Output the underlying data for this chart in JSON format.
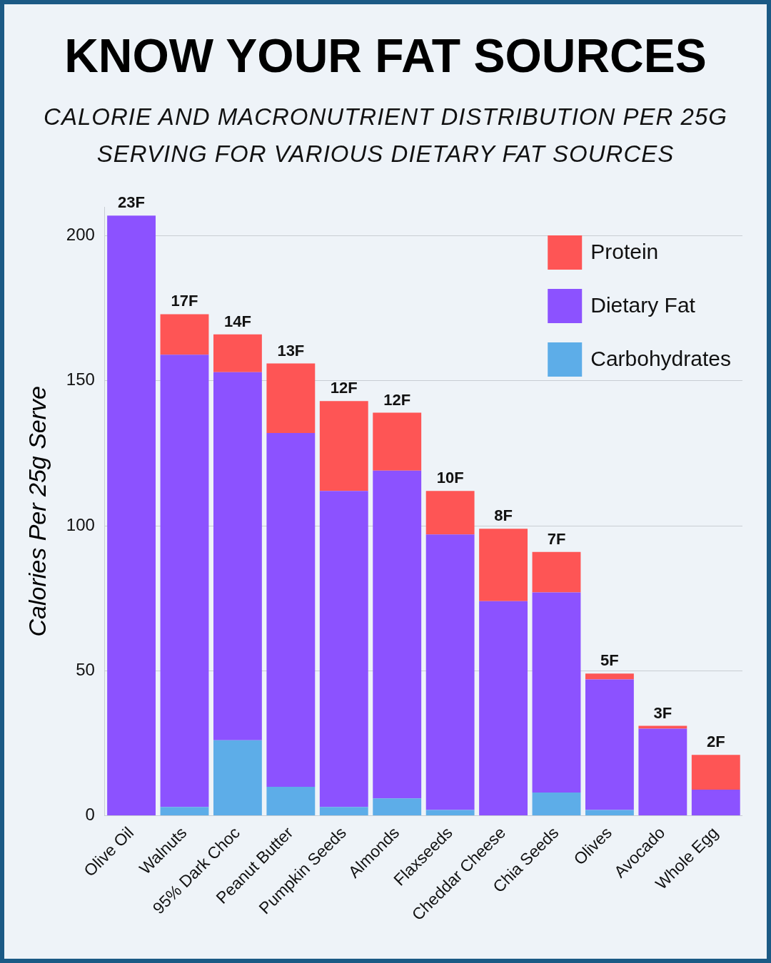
{
  "chart_data": {
    "type": "bar",
    "title": "KNOW YOUR FAT SOURCES",
    "subtitle": "CALORIE AND MACRONUTRIENT DISTRIBUTION PER 25G SERVING FOR VARIOUS DIETARY FAT SOURCES",
    "ylabel": "Calories Per 25g Serve",
    "categories": [
      "Olive Oil",
      "Walnuts",
      "95% Dark Choc",
      "Peanut Butter",
      "Pumpkin Seeds",
      "Almonds",
      "Flaxseeds",
      "Cheddar Cheese",
      "Chia Seeds",
      "Olives",
      "Avocado",
      "Whole Egg"
    ],
    "stacked": true,
    "series": [
      {
        "name": "Carbohydrates",
        "color": "#5dade8",
        "values": [
          0,
          3,
          26,
          10,
          3,
          6,
          2,
          0,
          8,
          2,
          0,
          0
        ]
      },
      {
        "name": "Dietary Fat",
        "color": "#8c52ff",
        "values": [
          207,
          156,
          127,
          122,
          109,
          113,
          95,
          74,
          69,
          45,
          30,
          9
        ]
      },
      {
        "name": "Protein",
        "color": "#fe5555",
        "values": [
          0,
          14,
          13,
          24,
          31,
          20,
          15,
          25,
          14,
          2,
          1,
          12
        ]
      }
    ],
    "annotations": [
      {
        "text": "23F",
        "x": "Olive Oil",
        "y": 207
      },
      {
        "text": "17F",
        "x": "Walnuts",
        "y": 173
      },
      {
        "text": "14F",
        "x": "95% Dark Choc",
        "y": 166
      },
      {
        "text": "13F",
        "x": "Peanut Butter",
        "y": 156
      },
      {
        "text": "12F",
        "x": "Pumpkin Seeds",
        "y": 143
      },
      {
        "text": "12F",
        "x": "Almonds",
        "y": 139
      },
      {
        "text": "10F",
        "x": "Flaxseeds",
        "y": 112
      },
      {
        "text": "8F",
        "x": "Cheddar Cheese",
        "y": 99
      },
      {
        "text": "7F",
        "x": "Chia Seeds",
        "y": 91
      },
      {
        "text": "5F",
        "x": "Olives",
        "y": 49
      },
      {
        "text": "3F",
        "x": "Avocado",
        "y": 31
      },
      {
        "text": "2F",
        "x": "Whole Egg",
        "y": 21
      }
    ],
    "ylim": [
      0,
      210
    ],
    "yticks": [
      0,
      50,
      100,
      150,
      200
    ],
    "grid": "y",
    "legend": "top right"
  }
}
